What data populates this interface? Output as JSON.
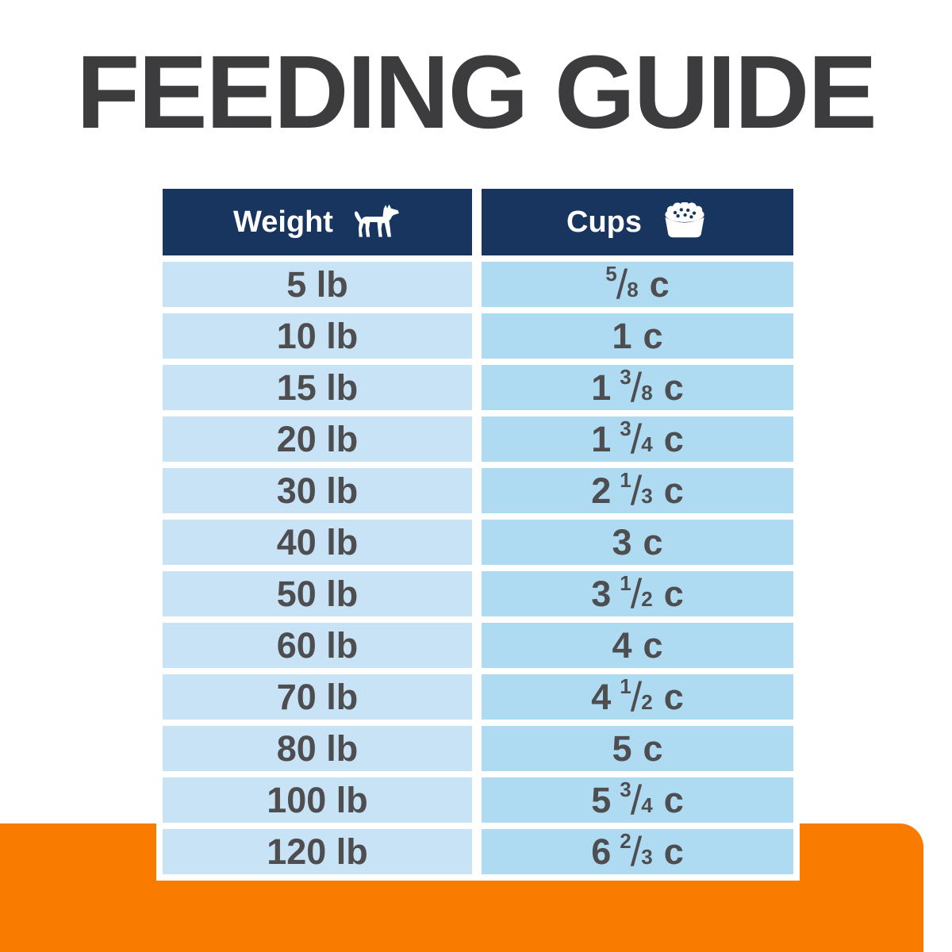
{
  "title": "FEEDING GUIDE",
  "colors": {
    "header_navy": "#17355e",
    "weight_cell_blue": "#c9e3f6",
    "cups_cell_blue": "#aedaf2",
    "footer_orange": "#f97c00",
    "title_text": "#3c3c3e",
    "row_text": "#4e4e50"
  },
  "table": {
    "columns": [
      {
        "label": "Weight",
        "icon": "dog-icon"
      },
      {
        "label": "Cups",
        "icon": "bowl-icon"
      }
    ],
    "rows": [
      {
        "weight": "5 lb",
        "cups": {
          "whole": "",
          "num": "5",
          "den": "8",
          "unit": "c"
        }
      },
      {
        "weight": "10 lb",
        "cups": {
          "whole": "1",
          "num": "",
          "den": "",
          "unit": "c"
        }
      },
      {
        "weight": "15 lb",
        "cups": {
          "whole": "1",
          "num": "3",
          "den": "8",
          "unit": "c"
        }
      },
      {
        "weight": "20 lb",
        "cups": {
          "whole": "1",
          "num": "3",
          "den": "4",
          "unit": "c"
        }
      },
      {
        "weight": "30 lb",
        "cups": {
          "whole": "2",
          "num": "1",
          "den": "3",
          "unit": "c"
        }
      },
      {
        "weight": "40 lb",
        "cups": {
          "whole": "3",
          "num": "",
          "den": "",
          "unit": "c"
        }
      },
      {
        "weight": "50 lb",
        "cups": {
          "whole": "3",
          "num": "1",
          "den": "2",
          "unit": "c"
        }
      },
      {
        "weight": "60 lb",
        "cups": {
          "whole": "4",
          "num": "",
          "den": "",
          "unit": "c"
        }
      },
      {
        "weight": "70 lb",
        "cups": {
          "whole": "4",
          "num": "1",
          "den": "2",
          "unit": "c"
        }
      },
      {
        "weight": "80 lb",
        "cups": {
          "whole": "5",
          "num": "",
          "den": "",
          "unit": "c"
        }
      },
      {
        "weight": "100 lb",
        "cups": {
          "whole": "5",
          "num": "3",
          "den": "4",
          "unit": "c"
        }
      },
      {
        "weight": "120 lb",
        "cups": {
          "whole": "6",
          "num": "2",
          "den": "3",
          "unit": "c"
        }
      }
    ]
  },
  "chart_data": {
    "type": "table",
    "title": "FEEDING GUIDE",
    "columns": [
      "Weight",
      "Cups"
    ],
    "rows": [
      [
        "5 lb",
        "5/8 c"
      ],
      [
        "10 lb",
        "1 c"
      ],
      [
        "15 lb",
        "1 3/8 c"
      ],
      [
        "20 lb",
        "1 3/4 c"
      ],
      [
        "30 lb",
        "2 1/3 c"
      ],
      [
        "40 lb",
        "3 c"
      ],
      [
        "50 lb",
        "3 1/2 c"
      ],
      [
        "60 lb",
        "4 c"
      ],
      [
        "70 lb",
        "4 1/2 c"
      ],
      [
        "80 lb",
        "5 c"
      ],
      [
        "100 lb",
        "5 3/4 c"
      ],
      [
        "120 lb",
        "6 2/3 c"
      ]
    ]
  }
}
